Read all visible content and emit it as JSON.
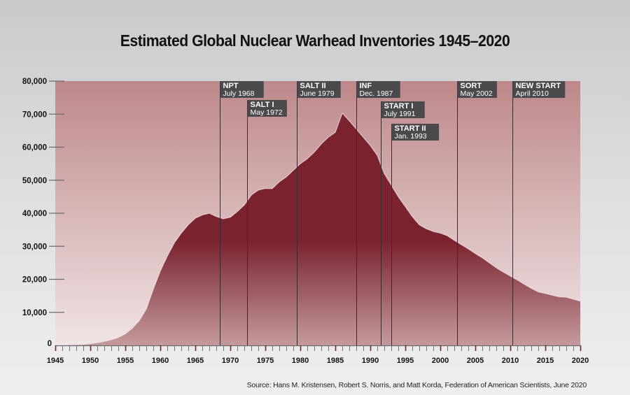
{
  "chart_data": {
    "type": "area",
    "title": "Estimated Global Nuclear Warhead Inventories 1945–2020",
    "xlabel": "",
    "ylabel": "",
    "xlim": [
      1945,
      2020
    ],
    "ylim": [
      0,
      80000
    ],
    "x_ticks": [
      1945,
      1950,
      1955,
      1960,
      1965,
      1970,
      1975,
      1980,
      1985,
      1990,
      1995,
      2000,
      2005,
      2010,
      2015,
      2020
    ],
    "x_tick_labels": [
      "1945",
      "1950",
      "1955",
      "1960",
      "1965",
      "1970",
      "1975",
      "1980",
      "1985",
      "1990",
      "1995",
      "2000",
      "2005",
      "2010",
      "2015",
      "2020"
    ],
    "y_ticks": [
      0,
      10000,
      20000,
      30000,
      40000,
      50000,
      60000,
      70000,
      80000
    ],
    "y_tick_labels": [
      "0",
      "10,000",
      "20,000",
      "30,000",
      "40,000",
      "50,000",
      "60,000",
      "70,000",
      "80,000"
    ],
    "grid": false,
    "legend": "none",
    "series": [
      {
        "name": "Global nuclear warheads",
        "x": [
          1945,
          1947,
          1949,
          1950,
          1951,
          1952,
          1953,
          1954,
          1955,
          1956,
          1957,
          1958,
          1959,
          1960,
          1961,
          1962,
          1963,
          1964,
          1965,
          1966,
          1967,
          1968,
          1969,
          1970,
          1971,
          1972,
          1973,
          1974,
          1975,
          1976,
          1977,
          1978,
          1979,
          1980,
          1981,
          1982,
          1983,
          1984,
          1985,
          1986,
          1987,
          1988,
          1989,
          1990,
          1991,
          1992,
          1993,
          1994,
          1995,
          1996,
          1997,
          1998,
          1999,
          2000,
          2001,
          2002,
          2003,
          2004,
          2005,
          2006,
          2007,
          2008,
          2009,
          2010,
          2011,
          2012,
          2013,
          2014,
          2015,
          2016,
          2017,
          2018,
          2019,
          2020
        ],
        "values": [
          2,
          150,
          300,
          500,
          800,
          1200,
          1700,
          2400,
          3500,
          5200,
          7500,
          11000,
          17000,
          22500,
          27000,
          31000,
          34000,
          36500,
          38500,
          39500,
          40000,
          39000,
          38300,
          38800,
          40500,
          42500,
          45500,
          47000,
          47500,
          47500,
          49500,
          51000,
          53000,
          55000,
          56500,
          58500,
          61000,
          63000,
          64500,
          70300,
          68000,
          65500,
          63000,
          60500,
          57500,
          52000,
          48500,
          45000,
          42000,
          39000,
          36500,
          35300,
          34500,
          34000,
          33200,
          31800,
          30500,
          29200,
          27800,
          26500,
          25000,
          23500,
          22200,
          21000,
          19800,
          18500,
          17300,
          16200,
          15700,
          15200,
          14700,
          14600,
          14000,
          13400
        ]
      }
    ],
    "annotations": [
      {
        "title": "NPT",
        "date": "July 1968",
        "x": 1968.5
      },
      {
        "title": "SALT I",
        "date": "May 1972",
        "x": 1972.4
      },
      {
        "title": "SALT II",
        "date": "June 1979",
        "x": 1979.45
      },
      {
        "title": "INF",
        "date": "Dec. 1987",
        "x": 1987.95
      },
      {
        "title": "START I",
        "date": "July 1991",
        "x": 1991.5
      },
      {
        "title": "START II",
        "date": "Jan. 1993",
        "x": 1993.05
      },
      {
        "title": "SORT",
        "date": "May 2002",
        "x": 2002.4
      },
      {
        "title": "NEW START",
        "date": "April 2010",
        "x": 2010.3
      }
    ],
    "source": "Source: Hans M. Kristensen, Robert S. Norris, and Matt Korda, Federation of American Scientists, June 2020"
  },
  "colors": {
    "area_fill_top": "#7a222e",
    "area_fill_bottom": "#c49a9c",
    "plot_bg_top": "#bd8889",
    "plot_bg_bottom": "#f1e4e5",
    "annotation_box": "#4a4a4c",
    "tick_major": "#8a1a24",
    "tick_minor": "#6e6e6e"
  }
}
